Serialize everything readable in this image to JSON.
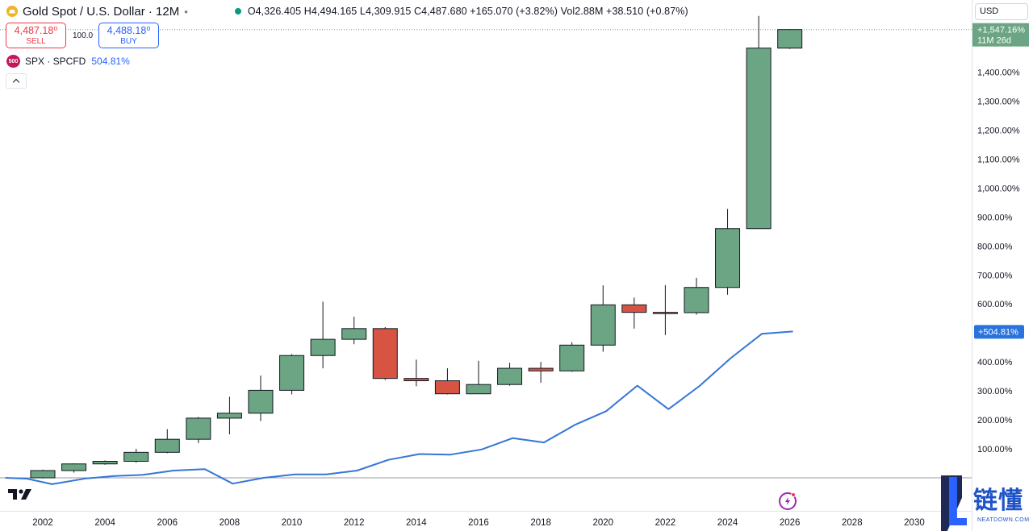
{
  "header": {
    "title": "Gold Spot / U.S. Dollar · 12M",
    "separator": "•",
    "ohlc_text": "O4,326.405  H4,494.165  L4,309.915  C4,487.680  +165.070 (+3.82%)  Vol2.88M  +38.510 (+0.87%)"
  },
  "trade": {
    "sell_price": "4,487.18⁰",
    "sell_label": "SELL",
    "spread": "100.0",
    "buy_price": "4,488.18⁰",
    "buy_label": "BUY"
  },
  "compare": {
    "badge": "500",
    "name": "SPX · SPCFD",
    "value": "504.81%"
  },
  "currency": "USD",
  "watermark": {
    "cn": "链懂",
    "en": "NEATDOWN.COM"
  },
  "chart_data": {
    "type": "candlestick",
    "y_unit": "%",
    "ylim": [
      -5,
      1600
    ],
    "y_ticks": [
      100,
      200,
      300,
      400,
      500,
      600,
      700,
      800,
      900,
      1000,
      1100,
      1200,
      1300,
      1400
    ],
    "y_tick_labels": [
      "100.00%",
      "200.00%",
      "300.00%",
      "400.00%",
      "500.00%",
      "600.00%",
      "700.00%",
      "800.00%",
      "900.00%",
      "1,000.00%",
      "1,100.00%",
      "1,200.00%",
      "1,300.00%",
      "1,400.00%"
    ],
    "xlim": [
      2000.8,
      2031.3
    ],
    "x_ticks": [
      2002,
      2004,
      2006,
      2008,
      2010,
      2012,
      2014,
      2016,
      2018,
      2020,
      2022,
      2024,
      2026,
      2028,
      2030
    ],
    "x_tick_labels": [
      "2002",
      "2004",
      "2006",
      "2008",
      "2010",
      "2012",
      "2014",
      "2016",
      "2018",
      "2020",
      "2022",
      "2024",
      "2026",
      "2028",
      "2030"
    ],
    "gold": [
      {
        "year": 2002,
        "open": 0,
        "high": 28,
        "low": -2,
        "close": 25
      },
      {
        "year": 2003,
        "open": 25,
        "high": 50,
        "low": 18,
        "close": 48
      },
      {
        "year": 2004,
        "open": 48,
        "high": 60,
        "low": 45,
        "close": 57
      },
      {
        "year": 2005,
        "open": 57,
        "high": 100,
        "low": 52,
        "close": 88
      },
      {
        "year": 2006,
        "open": 88,
        "high": 168,
        "low": 85,
        "close": 133
      },
      {
        "year": 2007,
        "open": 133,
        "high": 210,
        "low": 120,
        "close": 206
      },
      {
        "year": 2008,
        "open": 206,
        "high": 280,
        "low": 150,
        "close": 223
      },
      {
        "year": 2009,
        "open": 223,
        "high": 353,
        "low": 196,
        "close": 302
      },
      {
        "year": 2010,
        "open": 302,
        "high": 427,
        "low": 288,
        "close": 422
      },
      {
        "year": 2011,
        "open": 422,
        "high": 608,
        "low": 378,
        "close": 478
      },
      {
        "year": 2012,
        "open": 478,
        "high": 556,
        "low": 461,
        "close": 515
      },
      {
        "year": 2013,
        "open": 515,
        "high": 520,
        "low": 338,
        "close": 343
      },
      {
        "year": 2014,
        "open": 343,
        "high": 408,
        "low": 316,
        "close": 335
      },
      {
        "year": 2015,
        "open": 335,
        "high": 378,
        "low": 288,
        "close": 290
      },
      {
        "year": 2016,
        "open": 290,
        "high": 404,
        "low": 290,
        "close": 322
      },
      {
        "year": 2017,
        "open": 322,
        "high": 397,
        "low": 318,
        "close": 378
      },
      {
        "year": 2018,
        "open": 378,
        "high": 400,
        "low": 328,
        "close": 369
      },
      {
        "year": 2019,
        "open": 369,
        "high": 468,
        "low": 366,
        "close": 458
      },
      {
        "year": 2020,
        "open": 458,
        "high": 664,
        "low": 435,
        "close": 597
      },
      {
        "year": 2021,
        "open": 597,
        "high": 622,
        "low": 515,
        "close": 571
      },
      {
        "year": 2022,
        "open": 571,
        "high": 665,
        "low": 493,
        "close": 570
      },
      {
        "year": 2023,
        "open": 570,
        "high": 690,
        "low": 563,
        "close": 657
      },
      {
        "year": 2024,
        "open": 657,
        "high": 928,
        "low": 632,
        "close": 860
      },
      {
        "year": 2025,
        "open": 860,
        "high": 1594,
        "low": 860,
        "close": 1483
      },
      {
        "year": 2026,
        "open": 1483,
        "high": 1549,
        "low": 1480,
        "close": 1547
      }
    ],
    "spx": {
      "name": "SPX · SPCFD",
      "x": [
        2000.8,
        2001.5,
        2002.3,
        2003.4,
        2004.3,
        2005.2,
        2006.2,
        2007.2,
        2008.1,
        2009.1,
        2010.1,
        2011.1,
        2012.1,
        2013.1,
        2014.1,
        2015.1,
        2016.1,
        2017.1,
        2018.1,
        2019.1,
        2020.1,
        2021.1,
        2022.1,
        2023.1,
        2024.1,
        2025.1,
        2026.1
      ],
      "y": [
        0,
        -3,
        -22,
        -2,
        6,
        10,
        25,
        30,
        -20,
        0,
        12,
        12,
        25,
        62,
        82,
        80,
        98,
        137,
        122,
        183,
        230,
        318,
        237,
        317,
        413,
        497,
        505
      ]
    },
    "last_price_label": "+1,547.16%",
    "countdown_label": "11M 26d",
    "spx_label": "+504.81%",
    "colors": {
      "up": "#6ba583",
      "down": "#d75442",
      "spx": "#3576d6",
      "spx_badge": "#2a73dc",
      "price_badge": "#6ba583"
    }
  }
}
